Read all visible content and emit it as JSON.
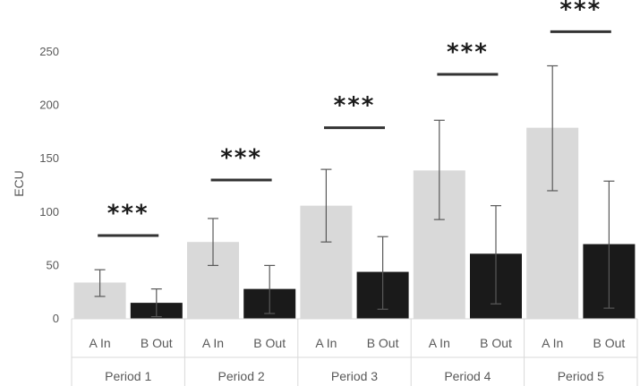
{
  "chart_data": {
    "type": "bar",
    "ylabel": "ECU",
    "ylim": [
      0,
      250
    ],
    "yticks": [
      "0",
      "50",
      "100",
      "150",
      "200",
      "250"
    ],
    "grid": false,
    "legend": "none",
    "groups": [
      "Period 1",
      "Period 2",
      "Period 3",
      "Period 4",
      "Period 5"
    ],
    "subcategories": [
      "A In",
      "B Out"
    ],
    "colors": {
      "A In": "#d9d9d9",
      "B Out": "#1a1a1a",
      "error_bar": "#595959",
      "axis": "#d9d9d9"
    },
    "series": [
      {
        "values": [
          34,
          72,
          106,
          139,
          179
        ],
        "error_low": [
          21,
          50,
          72,
          93,
          120
        ],
        "error_high": [
          46,
          94,
          140,
          186,
          237
        ]
      },
      {
        "values": [
          15,
          28,
          44,
          61,
          70
        ],
        "error_low": [
          2,
          5,
          9,
          14,
          10
        ],
        "error_high": [
          28,
          50,
          77,
          106,
          129
        ]
      }
    ],
    "significance": [
      "***",
      "***",
      "***",
      "***",
      "***"
    ],
    "significance_y": [
      78,
      130,
      179,
      229,
      269
    ]
  }
}
